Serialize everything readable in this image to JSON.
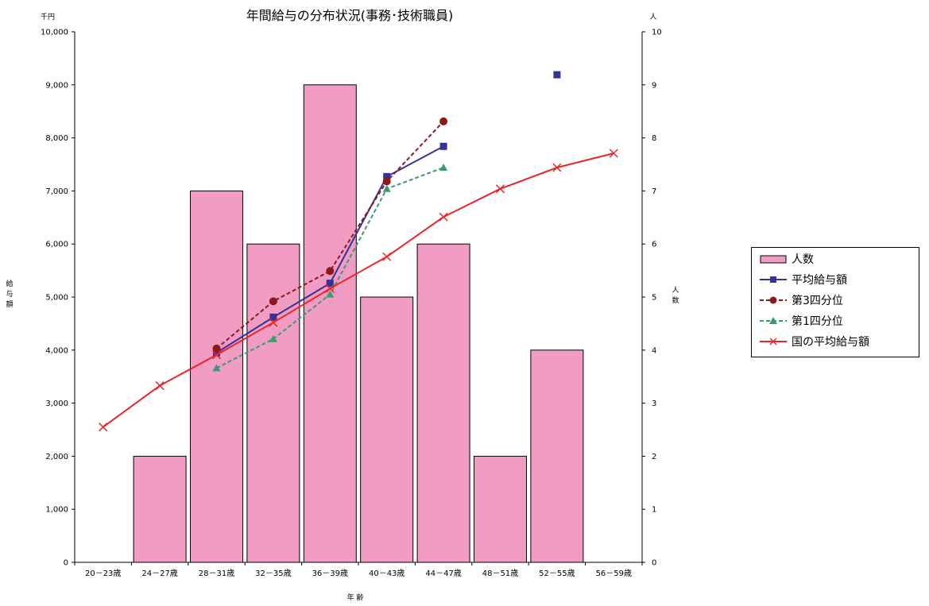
{
  "chart_data": {
    "type": "bar",
    "title": "年間給与の分布状況(事務･技術職員)",
    "categories": [
      "20－23歳",
      "24－27歳",
      "28－31歳",
      "32－35歳",
      "36－39歳",
      "40－43歳",
      "44－47歳",
      "48－51歳",
      "52－55歳",
      "56－59歳"
    ],
    "xlabel": "年 齢",
    "ylabel_left": "給与額",
    "ylabel_right": "人数",
    "unit_left": "千円",
    "unit_right": "人",
    "ylim_left": [
      0,
      10000
    ],
    "ylim_right": [
      0,
      10
    ],
    "yticks_left": [
      "0",
      "1,000",
      "2,000",
      "3,000",
      "4,000",
      "5,000",
      "6,000",
      "7,000",
      "8,000",
      "9,000",
      "10,000"
    ],
    "yticks_right": [
      "0",
      "1",
      "2",
      "3",
      "4",
      "5",
      "6",
      "7",
      "8",
      "9",
      "10"
    ],
    "grid": false,
    "legend_position": "right",
    "series": [
      {
        "name": "人数",
        "kind": "bar",
        "axis": "right",
        "color": "#f19cc3",
        "values": [
          0,
          2,
          7,
          6,
          9,
          5,
          6,
          2,
          4,
          0
        ]
      },
      {
        "name": "平均給与額",
        "kind": "line",
        "axis": "left",
        "color": "#333399",
        "marker": "square",
        "dash": "solid",
        "values": [
          null,
          null,
          3950,
          4620,
          5260,
          7270,
          7840,
          null,
          9190,
          null
        ]
      },
      {
        "name": "第3四分位",
        "kind": "line",
        "axis": "left",
        "color": "#8b1a1a",
        "marker": "circle",
        "dash": "dashed",
        "values": [
          null,
          null,
          4030,
          4920,
          5490,
          7180,
          8310,
          null,
          null,
          null
        ]
      },
      {
        "name": "第1四分位",
        "kind": "line",
        "axis": "left",
        "color": "#3a9b6b",
        "marker": "triangle",
        "dash": "dashed",
        "values": [
          null,
          null,
          3660,
          4210,
          5050,
          7040,
          7440,
          null,
          null,
          null
        ]
      },
      {
        "name": "国の平均給与額",
        "kind": "line",
        "axis": "left",
        "color": "#e8262a",
        "marker": "x",
        "dash": "solid",
        "values": [
          2550,
          3330,
          3910,
          4520,
          5160,
          5760,
          6510,
          7040,
          7440,
          7710
        ]
      }
    ]
  }
}
